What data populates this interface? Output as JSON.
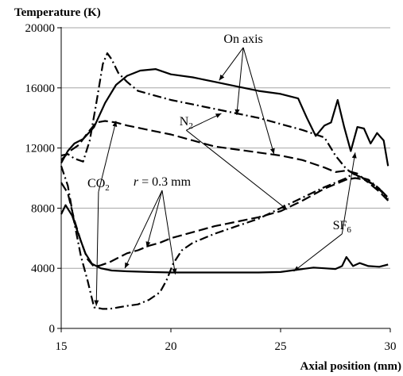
{
  "chart_data": {
    "type": "line",
    "ylabel": "Temperature (K)",
    "xlabel": "Axial position (mm)",
    "xlim": [
      15,
      30
    ],
    "ylim": [
      0,
      20000
    ],
    "xticks": [
      15,
      20,
      25,
      30
    ],
    "yticks": [
      0,
      4000,
      8000,
      12000,
      16000,
      20000
    ],
    "xtick_labels": [
      "15",
      "20",
      "25",
      "30"
    ],
    "ytick_labels": [
      "0",
      "4000",
      "8000",
      "12000",
      "16000",
      "20000"
    ],
    "grid": "horizontal",
    "legend": "none",
    "line_colors": {
      "SF6": "#000000",
      "N2": "#000000",
      "CO2": "#000000",
      "grid": "#a6a6a6"
    },
    "series": [
      {
        "key": "SF6",
        "location": "axis",
        "dash": "solid",
        "label": "SF6",
        "x": [
          15.0,
          15.3,
          15.6,
          16.0,
          16.5,
          17.0,
          17.5,
          18.0,
          18.6,
          19.3,
          20.0,
          21.0,
          22.0,
          23.0,
          24.0,
          25.0,
          25.8,
          26.2,
          26.6,
          27.0,
          27.3,
          27.6,
          27.9,
          28.2,
          28.5,
          28.8,
          29.1,
          29.4,
          29.7,
          29.9
        ],
        "y": [
          11000,
          11800,
          12300,
          12600,
          13400,
          15000,
          16200,
          16800,
          17150,
          17250,
          16900,
          16700,
          16400,
          16100,
          15800,
          15600,
          15300,
          14000,
          12800,
          13500,
          13700,
          15200,
          13400,
          11800,
          13400,
          13300,
          12300,
          13000,
          12500,
          10800
        ]
      },
      {
        "key": "SF6",
        "location": "r = 0.3 mm",
        "dash": "solid",
        "label": "SF6",
        "x": [
          15.0,
          15.2,
          15.5,
          15.8,
          16.1,
          16.4,
          16.8,
          17.3,
          18.0,
          19.0,
          20.0,
          21.0,
          22.0,
          23.0,
          24.0,
          25.0,
          25.5,
          26.0,
          26.5,
          27.0,
          27.5,
          27.8,
          28.0,
          28.3,
          28.6,
          29.0,
          29.5,
          29.9
        ],
        "y": [
          7600,
          8200,
          7500,
          6200,
          5000,
          4300,
          4000,
          3850,
          3800,
          3750,
          3720,
          3720,
          3720,
          3720,
          3720,
          3750,
          3850,
          3950,
          4050,
          4000,
          3950,
          4150,
          4750,
          4150,
          4350,
          4150,
          4100,
          4250
        ]
      },
      {
        "key": "N2",
        "location": "axis",
        "dash": "dash",
        "label": "N2",
        "x": [
          15.0,
          15.4,
          15.8,
          16.2,
          16.6,
          17.0,
          17.5,
          18.0,
          19.0,
          20.0,
          21.0,
          22.0,
          23.0,
          24.0,
          25.0,
          26.0,
          27.0,
          27.5,
          28.0,
          28.5,
          29.0,
          29.5,
          29.9
        ],
        "y": [
          11200,
          11800,
          12200,
          13000,
          13700,
          13800,
          13700,
          13500,
          13200,
          12900,
          12500,
          12100,
          11900,
          11700,
          11500,
          11200,
          10700,
          10400,
          10500,
          10300,
          9700,
          9100,
          8500
        ]
      },
      {
        "key": "N2",
        "location": "r = 0.3 mm",
        "dash": "dash",
        "label": "N2",
        "x": [
          15.0,
          15.3,
          15.6,
          15.9,
          16.2,
          16.5,
          16.8,
          17.2,
          17.6,
          18.0,
          18.5,
          19.0,
          19.5,
          20.0,
          21.0,
          22.0,
          23.0,
          24.0,
          25.0,
          26.0,
          26.5,
          27.0,
          27.5,
          28.0,
          28.4,
          28.8,
          29.2,
          29.6,
          29.9
        ],
        "y": [
          9700,
          9000,
          7200,
          5800,
          4600,
          4100,
          4200,
          4400,
          4700,
          5000,
          5200,
          5500,
          5700,
          6000,
          6400,
          6800,
          7100,
          7400,
          7800,
          8500,
          8900,
          9300,
          9600,
          9900,
          10000,
          9900,
          9600,
          9100,
          8500
        ]
      },
      {
        "key": "CO2",
        "location": "axis",
        "dash": "dashdot",
        "label": "CO2",
        "x": [
          15.0,
          15.3,
          15.6,
          16.0,
          16.3,
          16.6,
          16.9,
          17.1,
          17.3,
          17.6,
          18.0,
          18.5,
          19.0,
          20.0,
          21.0,
          22.0,
          23.0,
          24.0,
          25.0,
          26.0,
          27.0,
          27.5,
          28.0,
          28.5,
          29.0,
          29.5,
          29.9
        ],
        "y": [
          11500,
          11600,
          11300,
          11100,
          12500,
          15000,
          17600,
          18300,
          17900,
          17000,
          16400,
          15800,
          15600,
          15200,
          14900,
          14600,
          14300,
          14000,
          13600,
          13200,
          12700,
          11500,
          10600,
          10100,
          9900,
          9300,
          8600
        ]
      },
      {
        "key": "CO2",
        "location": "r = 0.3 mm",
        "dash": "dashdot",
        "label": "CO2",
        "x": [
          15.0,
          15.3,
          15.6,
          15.9,
          16.2,
          16.5,
          16.7,
          16.9,
          17.2,
          17.6,
          18.0,
          18.5,
          19.0,
          19.5,
          19.8,
          20.1,
          20.5,
          21.0,
          22.0,
          23.0,
          24.0,
          25.0,
          26.0,
          27.0,
          27.5,
          28.0,
          28.3,
          28.6,
          29.0,
          29.5,
          29.9
        ],
        "y": [
          10800,
          9500,
          7000,
          4800,
          3200,
          1400,
          1350,
          1300,
          1300,
          1400,
          1500,
          1600,
          1900,
          2400,
          3200,
          4300,
          5200,
          5700,
          6300,
          6800,
          7300,
          8000,
          8700,
          9400,
          9700,
          10000,
          10300,
          10100,
          9800,
          9300,
          8700
        ]
      }
    ],
    "annotations": [
      {
        "key": "on_axis",
        "text": "On axis",
        "x": 23.3,
        "y": 19000,
        "targets": [
          [
            22.2,
            16500
          ],
          [
            23.0,
            14200
          ],
          [
            24.7,
            11600
          ]
        ]
      },
      {
        "key": "n2",
        "text": "N",
        "sub": "2",
        "x": 20.7,
        "y": 13500,
        "targets": [
          [
            22.3,
            14300
          ],
          [
            25.3,
            7900
          ]
        ]
      },
      {
        "key": "co2",
        "text": "CO",
        "sub": "2",
        "x": 16.7,
        "y": 9400,
        "targets": [
          [
            17.5,
            13800
          ],
          [
            16.6,
            1500
          ]
        ]
      },
      {
        "key": "r03",
        "text": "r = 0.3 mm",
        "italic_prefix": "r",
        "x": 19.6,
        "y": 9500,
        "targets": [
          [
            17.9,
            4000
          ],
          [
            18.9,
            5400
          ],
          [
            20.2,
            3600
          ]
        ]
      },
      {
        "key": "sf6",
        "text": "SF",
        "sub": "6",
        "x": 27.8,
        "y": 6600,
        "targets": [
          [
            28.4,
            11700
          ],
          [
            25.6,
            3800
          ]
        ]
      }
    ]
  }
}
